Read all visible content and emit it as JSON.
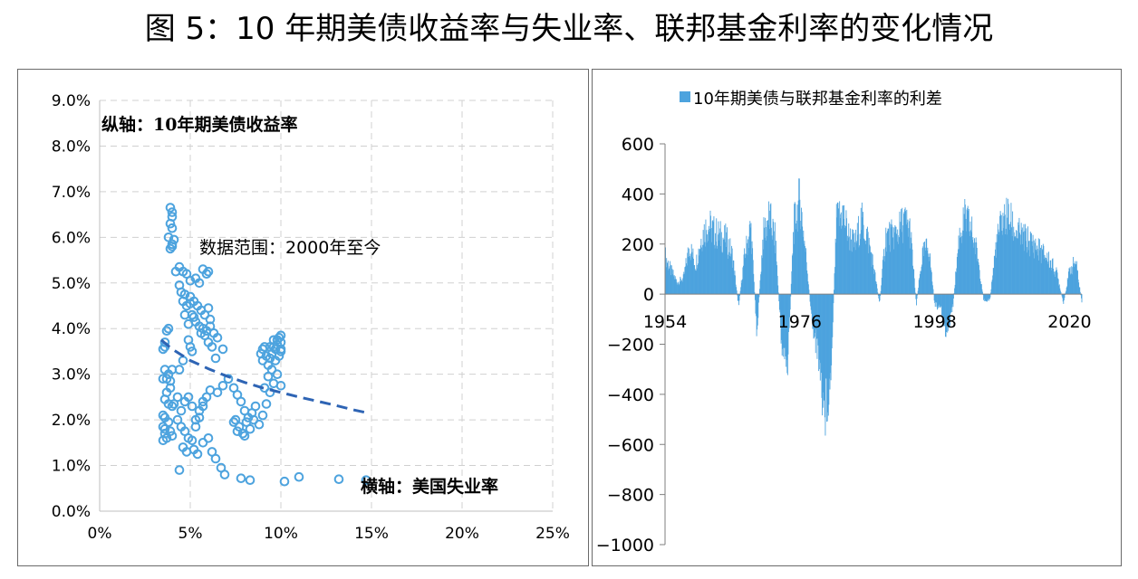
{
  "figure_title": "图 5：10 年期美债收益率与失业率、联邦基金利率的变化情况",
  "chart_data": [
    {
      "type": "scatter",
      "title": "",
      "xlabel": "横轴：美国失业率",
      "ylabel": "纵轴：10年期美债收益率",
      "annotation": "数据范围：2000年至今",
      "xlim": [
        0,
        25
      ],
      "ylim": [
        0,
        9
      ],
      "x_ticks": [
        "0%",
        "5%",
        "10%",
        "15%",
        "20%",
        "25%"
      ],
      "y_ticks": [
        "0.0%",
        "1.0%",
        "2.0%",
        "3.0%",
        "4.0%",
        "5.0%",
        "6.0%",
        "7.0%",
        "8.0%",
        "9.0%"
      ],
      "grid": true,
      "marker_color": "#4da3de",
      "trendline": {
        "style": "dashed",
        "color": "#2e64b4",
        "x": [
          3.4,
          4,
          5,
          6,
          7,
          8,
          9,
          10,
          11,
          12,
          13,
          14,
          14.8
        ],
        "y": [
          3.75,
          3.55,
          3.3,
          3.12,
          2.96,
          2.82,
          2.7,
          2.6,
          2.5,
          2.41,
          2.32,
          2.22,
          2.15
        ]
      },
      "points": [
        [
          3.9,
          6.65
        ],
        [
          4.0,
          6.55
        ],
        [
          4.0,
          6.45
        ],
        [
          3.9,
          6.3
        ],
        [
          4.0,
          6.2
        ],
        [
          3.8,
          6.0
        ],
        [
          4.1,
          5.95
        ],
        [
          4.0,
          5.85
        ],
        [
          3.9,
          5.75
        ],
        [
          4.0,
          5.8
        ],
        [
          4.2,
          5.25
        ],
        [
          4.4,
          5.35
        ],
        [
          4.6,
          5.25
        ],
        [
          4.8,
          5.2
        ],
        [
          5.0,
          5.05
        ],
        [
          5.3,
          5.1
        ],
        [
          5.7,
          5.3
        ],
        [
          5.9,
          5.2
        ],
        [
          6.0,
          5.25
        ],
        [
          5.5,
          5.0
        ],
        [
          4.5,
          4.8
        ],
        [
          4.6,
          4.6
        ],
        [
          4.8,
          4.5
        ],
        [
          5.0,
          4.7
        ],
        [
          5.2,
          4.6
        ],
        [
          5.4,
          4.5
        ],
        [
          5.6,
          4.4
        ],
        [
          5.8,
          4.3
        ],
        [
          6.0,
          4.45
        ],
        [
          6.1,
          4.2
        ],
        [
          4.7,
          4.3
        ],
        [
          4.9,
          4.1
        ],
        [
          5.1,
          4.3
        ],
        [
          5.3,
          4.15
        ],
        [
          5.5,
          4.05
        ],
        [
          5.7,
          4.0
        ],
        [
          5.9,
          3.95
        ],
        [
          6.1,
          4.05
        ],
        [
          6.3,
          3.9
        ],
        [
          6.5,
          3.8
        ],
        [
          4.4,
          4.95
        ],
        [
          4.7,
          4.75
        ],
        [
          5.0,
          4.55
        ],
        [
          5.2,
          4.25
        ],
        [
          5.6,
          3.9
        ],
        [
          5.8,
          3.85
        ],
        [
          6.0,
          3.7
        ],
        [
          6.2,
          3.6
        ],
        [
          6.4,
          3.35
        ],
        [
          6.8,
          3.55
        ],
        [
          4.9,
          3.75
        ],
        [
          5.0,
          3.6
        ],
        [
          5.1,
          3.5
        ],
        [
          4.6,
          3.3
        ],
        [
          4.4,
          3.1
        ],
        [
          3.5,
          3.55
        ],
        [
          3.6,
          3.7
        ],
        [
          3.7,
          3.95
        ],
        [
          3.8,
          4.0
        ],
        [
          3.6,
          3.6
        ],
        [
          3.6,
          3.1
        ],
        [
          3.7,
          2.9
        ],
        [
          3.8,
          3.0
        ],
        [
          3.9,
          2.85
        ],
        [
          3.7,
          2.6
        ],
        [
          3.6,
          2.45
        ],
        [
          3.8,
          2.35
        ],
        [
          3.5,
          2.9
        ],
        [
          3.9,
          2.7
        ],
        [
          4.0,
          3.1
        ],
        [
          4.0,
          2.3
        ],
        [
          4.1,
          2.35
        ],
        [
          4.3,
          2.5
        ],
        [
          4.5,
          2.2
        ],
        [
          4.7,
          2.4
        ],
        [
          4.9,
          2.5
        ],
        [
          5.1,
          2.3
        ],
        [
          5.3,
          2.0
        ],
        [
          5.5,
          2.2
        ],
        [
          5.7,
          2.4
        ],
        [
          4.3,
          2.0
        ],
        [
          4.5,
          1.85
        ],
        [
          4.7,
          1.75
        ],
        [
          4.9,
          1.6
        ],
        [
          5.1,
          1.55
        ],
        [
          5.3,
          1.85
        ],
        [
          5.5,
          2.05
        ],
        [
          5.7,
          2.3
        ],
        [
          5.9,
          2.5
        ],
        [
          6.1,
          2.65
        ],
        [
          3.5,
          2.1
        ],
        [
          3.6,
          2.05
        ],
        [
          3.5,
          1.85
        ],
        [
          3.6,
          1.7
        ],
        [
          3.7,
          1.6
        ],
        [
          3.5,
          1.55
        ],
        [
          3.6,
          1.8
        ],
        [
          3.8,
          1.95
        ],
        [
          3.9,
          1.75
        ],
        [
          4.0,
          1.65
        ],
        [
          4.6,
          1.4
        ],
        [
          4.8,
          1.3
        ],
        [
          5.2,
          1.35
        ],
        [
          5.4,
          1.25
        ],
        [
          5.7,
          1.5
        ],
        [
          6.0,
          1.6
        ],
        [
          6.2,
          1.3
        ],
        [
          6.4,
          1.15
        ],
        [
          6.7,
          0.95
        ],
        [
          6.9,
          0.8
        ],
        [
          4.4,
          0.9
        ],
        [
          7.8,
          0.72
        ],
        [
          8.3,
          0.68
        ],
        [
          10.2,
          0.65
        ],
        [
          11.0,
          0.75
        ],
        [
          13.2,
          0.7
        ],
        [
          14.7,
          0.68
        ],
        [
          6.5,
          2.6
        ],
        [
          6.8,
          2.75
        ],
        [
          7.1,
          2.9
        ],
        [
          7.4,
          2.7
        ],
        [
          7.6,
          2.55
        ],
        [
          7.8,
          2.4
        ],
        [
          8.0,
          2.2
        ],
        [
          8.2,
          2.05
        ],
        [
          8.4,
          2.15
        ],
        [
          8.6,
          2.3
        ],
        [
          7.5,
          2.0
        ],
        [
          7.7,
          1.85
        ],
        [
          7.9,
          1.7
        ],
        [
          8.1,
          1.95
        ],
        [
          8.3,
          1.8
        ],
        [
          7.4,
          1.95
        ],
        [
          7.6,
          1.75
        ],
        [
          8.0,
          1.65
        ],
        [
          8.5,
          2.0
        ],
        [
          8.8,
          1.9
        ],
        [
          9.0,
          2.1
        ],
        [
          9.2,
          2.35
        ],
        [
          9.4,
          2.6
        ],
        [
          9.6,
          2.8
        ],
        [
          9.8,
          3.0
        ],
        [
          10.0,
          2.75
        ],
        [
          9.1,
          2.7
        ],
        [
          9.3,
          2.95
        ],
        [
          9.5,
          3.1
        ],
        [
          9.0,
          3.3
        ],
        [
          9.0,
          3.55
        ],
        [
          9.2,
          3.4
        ],
        [
          9.4,
          3.6
        ],
        [
          9.6,
          3.75
        ],
        [
          9.8,
          3.65
        ],
        [
          10.0,
          3.5
        ],
        [
          10.0,
          3.85
        ],
        [
          9.9,
          3.4
        ],
        [
          9.7,
          3.3
        ],
        [
          9.3,
          3.2
        ],
        [
          10.0,
          3.55
        ],
        [
          9.8,
          3.75
        ],
        [
          9.5,
          3.45
        ],
        [
          9.1,
          3.6
        ],
        [
          8.9,
          3.45
        ],
        [
          10.0,
          3.7
        ],
        [
          9.6,
          3.6
        ],
        [
          9.4,
          3.35
        ],
        [
          9.7,
          3.55
        ],
        [
          9.9,
          3.8
        ]
      ]
    },
    {
      "type": "bar",
      "title": "",
      "legend": "10年期美债与联邦基金利率的利差",
      "legend_position": "top",
      "ylim": [
        -1000,
        600
      ],
      "y_ticks": [
        "600",
        "400",
        "200",
        "0",
        "−200",
        "−400",
        "−600",
        "−800",
        "−1000"
      ],
      "x_ticks": [
        "1954",
        "1976",
        "1998",
        "2020"
      ],
      "color": "#4da3de",
      "grid": false,
      "x_year_start": 1954,
      "x_year_end": 2022,
      "envelope_years": [
        1954.0,
        1955.0,
        1956.0,
        1957.0,
        1958.0,
        1959.0,
        1960.0,
        1961.0,
        1962.0,
        1963.0,
        1964.0,
        1965.0,
        1966.0,
        1967.0,
        1968.0,
        1969.0,
        1970.0,
        1971.0,
        1972.0,
        1973.0,
        1974.0,
        1975.0,
        1976.0,
        1977.0,
        1978.0,
        1979.0,
        1980.0,
        1981.0,
        1982.0,
        1983.0,
        1984.0,
        1985.0,
        1986.0,
        1987.0,
        1988.0,
        1989.0,
        1990.0,
        1991.0,
        1992.0,
        1993.0,
        1994.0,
        1995.0,
        1996.0,
        1997.0,
        1998.0,
        1999.0,
        2000.0,
        2001.0,
        2002.0,
        2003.0,
        2004.0,
        2005.0,
        2006.0,
        2007.0,
        2008.0,
        2009.0,
        2010.0,
        2011.0,
        2012.0,
        2013.0,
        2014.0,
        2015.0,
        2016.0,
        2017.0,
        2018.0,
        2019.0,
        2020.0,
        2021.0,
        2022.0
      ],
      "envelope_values": [
        200,
        120,
        60,
        80,
        250,
        150,
        300,
        360,
        320,
        300,
        280,
        200,
        -60,
        200,
        350,
        -200,
        300,
        400,
        280,
        -250,
        -380,
        350,
        490,
        200,
        -150,
        -300,
        -600,
        -450,
        380,
        420,
        300,
        250,
        380,
        300,
        150,
        -50,
        300,
        300,
        320,
        380,
        330,
        -50,
        200,
        250,
        -50,
        -80,
        -200,
        -50,
        300,
        390,
        330,
        200,
        -30,
        -30,
        250,
        380,
        400,
        330,
        300,
        280,
        260,
        230,
        200,
        160,
        100,
        -50,
        120,
        170,
        -40
      ]
    }
  ]
}
